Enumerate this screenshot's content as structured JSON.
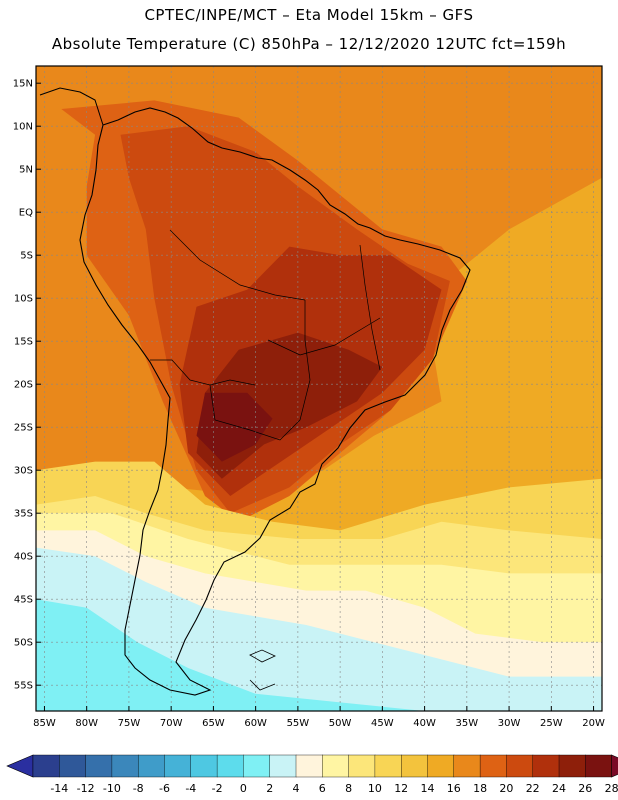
{
  "title_line1": "CPTEC/INPE/MCT –  Eta Model 15km – GFS",
  "title_line2": "Absolute Temperature (C) 850hPa – 12/12/2020 12UTC fct=159h",
  "map": {
    "lon_range": [
      -86,
      -19
    ],
    "lat_range": [
      -58,
      17
    ],
    "lat_ticks": [
      {
        "lat": 15,
        "label": "15N"
      },
      {
        "lat": 10,
        "label": "10N"
      },
      {
        "lat": 5,
        "label": "5N"
      },
      {
        "lat": 0,
        "label": "EQ"
      },
      {
        "lat": -5,
        "label": "5S"
      },
      {
        "lat": -10,
        "label": "10S"
      },
      {
        "lat": -15,
        "label": "15S"
      },
      {
        "lat": -20,
        "label": "20S"
      },
      {
        "lat": -25,
        "label": "25S"
      },
      {
        "lat": -30,
        "label": "30S"
      },
      {
        "lat": -35,
        "label": "35S"
      },
      {
        "lat": -40,
        "label": "40S"
      },
      {
        "lat": -45,
        "label": "45S"
      },
      {
        "lat": -50,
        "label": "50S"
      },
      {
        "lat": -55,
        "label": "55S"
      }
    ],
    "lon_ticks": [
      {
        "lon": -85,
        "label": "85W"
      },
      {
        "lon": -80,
        "label": "80W"
      },
      {
        "lon": -75,
        "label": "75W"
      },
      {
        "lon": -70,
        "label": "70W"
      },
      {
        "lon": -65,
        "label": "65W"
      },
      {
        "lon": -60,
        "label": "60W"
      },
      {
        "lon": -55,
        "label": "55W"
      },
      {
        "lon": -50,
        "label": "50W"
      },
      {
        "lon": -45,
        "label": "45W"
      },
      {
        "lon": -40,
        "label": "40W"
      },
      {
        "lon": -35,
        "label": "35W"
      },
      {
        "lon": -30,
        "label": "30W"
      },
      {
        "lon": -25,
        "label": "25W"
      },
      {
        "lon": -20,
        "label": "20W"
      }
    ],
    "temperature_zones": [
      {
        "band": "14-16",
        "ring": [
          [
            -86,
            17
          ],
          [
            -19,
            17
          ],
          [
            -19,
            -38
          ],
          [
            -86,
            -38
          ]
        ]
      },
      {
        "band": "16-18",
        "ring": [
          [
            -86,
            17
          ],
          [
            -19,
            17
          ],
          [
            -19,
            4
          ],
          [
            -30,
            -2
          ],
          [
            -40,
            -10
          ],
          [
            -38,
            -22
          ],
          [
            -46,
            -26
          ],
          [
            -52,
            -30
          ],
          [
            -60,
            -33
          ],
          [
            -70,
            -32
          ],
          [
            -86,
            -31
          ]
        ]
      },
      {
        "band": "18-20",
        "ring": [
          [
            -83,
            12
          ],
          [
            -72,
            13
          ],
          [
            -62,
            11
          ],
          [
            -55,
            6
          ],
          [
            -50,
            2
          ],
          [
            -45,
            -2
          ],
          [
            -38,
            -4
          ],
          [
            -35,
            -8
          ],
          [
            -39,
            -17
          ],
          [
            -44,
            -23
          ],
          [
            -50,
            -28
          ],
          [
            -56,
            -33
          ],
          [
            -62,
            -36
          ],
          [
            -66,
            -33
          ],
          [
            -71,
            -22
          ],
          [
            -75,
            -12
          ],
          [
            -80,
            -5
          ],
          [
            -80,
            3
          ],
          [
            -79,
            9
          ]
        ]
      },
      {
        "band": "20-22",
        "ring": [
          [
            -76,
            9
          ],
          [
            -68,
            10
          ],
          [
            -60,
            7
          ],
          [
            -55,
            3
          ],
          [
            -48,
            -2
          ],
          [
            -42,
            -6
          ],
          [
            -37,
            -8
          ],
          [
            -39,
            -17
          ],
          [
            -44,
            -23
          ],
          [
            -50,
            -27
          ],
          [
            -56,
            -32
          ],
          [
            -63,
            -35
          ],
          [
            -67,
            -30
          ],
          [
            -70,
            -20
          ],
          [
            -72,
            -10
          ],
          [
            -73,
            -2
          ],
          [
            -75,
            4
          ]
        ]
      },
      {
        "band": "22-24",
        "ring": [
          [
            -67,
            -11
          ],
          [
            -61,
            -9
          ],
          [
            -56,
            -4
          ],
          [
            -50,
            -5
          ],
          [
            -44,
            -5
          ],
          [
            -38,
            -9
          ],
          [
            -40,
            -16
          ],
          [
            -45,
            -21
          ],
          [
            -51,
            -25
          ],
          [
            -57,
            -29
          ],
          [
            -63,
            -33
          ],
          [
            -68,
            -28
          ],
          [
            -69,
            -20
          ]
        ]
      },
      {
        "band": "24-26",
        "ring": [
          [
            -62,
            -16
          ],
          [
            -55,
            -14
          ],
          [
            -49,
            -16
          ],
          [
            -45,
            -18
          ],
          [
            -48,
            -22
          ],
          [
            -54,
            -25
          ],
          [
            -59,
            -27
          ],
          [
            -64,
            -31
          ],
          [
            -67,
            -28
          ],
          [
            -66,
            -21
          ]
        ]
      },
      {
        "band": "26-28",
        "ring": [
          [
            -66,
            -21
          ],
          [
            -61,
            -21
          ],
          [
            -58,
            -24
          ],
          [
            -60,
            -27
          ],
          [
            -64,
            -29
          ],
          [
            -67,
            -26
          ]
        ]
      },
      {
        "band": "10-12",
        "ring": [
          [
            -86,
            -30
          ],
          [
            -79,
            -29
          ],
          [
            -72,
            -29
          ],
          [
            -66,
            -34
          ],
          [
            -58,
            -36
          ],
          [
            -50,
            -37
          ],
          [
            -40,
            -34
          ],
          [
            -30,
            -32
          ],
          [
            -19,
            -31
          ],
          [
            -19,
            -42
          ],
          [
            -86,
            -42
          ]
        ]
      },
      {
        "band": "8-10",
        "ring": [
          [
            -86,
            -34
          ],
          [
            -79,
            -33
          ],
          [
            -73,
            -35
          ],
          [
            -66,
            -37
          ],
          [
            -55,
            -38
          ],
          [
            -45,
            -38
          ],
          [
            -38,
            -36
          ],
          [
            -30,
            -37
          ],
          [
            -19,
            -38
          ],
          [
            -19,
            -50
          ],
          [
            -86,
            -50
          ]
        ]
      },
      {
        "band": "6-8",
        "ring": [
          [
            -86,
            -35
          ],
          [
            -77,
            -35
          ],
          [
            -68,
            -38
          ],
          [
            -56,
            -41
          ],
          [
            -46,
            -41
          ],
          [
            -38,
            -41
          ],
          [
            -30,
            -42
          ],
          [
            -19,
            -42
          ],
          [
            -19,
            -58
          ],
          [
            -86,
            -58
          ]
        ]
      },
      {
        "band": "4-6",
        "ring": [
          [
            -86,
            -37
          ],
          [
            -79,
            -37
          ],
          [
            -73,
            -40
          ],
          [
            -66,
            -42
          ],
          [
            -54,
            -44
          ],
          [
            -47,
            -44
          ],
          [
            -40,
            -46
          ],
          [
            -34,
            -49
          ],
          [
            -26,
            -50
          ],
          [
            -19,
            -50
          ],
          [
            -19,
            -58
          ],
          [
            -86,
            -58
          ]
        ]
      },
      {
        "band": "2-4",
        "ring": [
          [
            -86,
            -39
          ],
          [
            -79,
            -40
          ],
          [
            -73,
            -43
          ],
          [
            -66,
            -46
          ],
          [
            -54,
            -48
          ],
          [
            -46,
            -50
          ],
          [
            -38,
            -52
          ],
          [
            -30,
            -54
          ],
          [
            -19,
            -54
          ],
          [
            -19,
            -58
          ],
          [
            -86,
            -58
          ]
        ]
      },
      {
        "band": "0-2",
        "ring": [
          [
            -86,
            -45
          ],
          [
            -80,
            -46
          ],
          [
            -74,
            -50
          ],
          [
            -68,
            -53
          ],
          [
            -60,
            -56
          ],
          [
            -50,
            -57
          ],
          [
            -40,
            -58
          ],
          [
            -86,
            -58
          ]
        ]
      }
    ]
  },
  "colorbar": {
    "tick_labels": [
      "-14",
      "-12",
      "-10",
      "-8",
      "-6",
      "-4",
      "-2",
      "0",
      "2",
      "4",
      "6",
      "8",
      "10",
      "12",
      "14",
      "16",
      "18",
      "20",
      "22",
      "24",
      "26",
      "28"
    ],
    "colors": [
      "#2b3f8e",
      "#2f5899",
      "#3570ab",
      "#3b87bb",
      "#3f9cc9",
      "#45b2d7",
      "#4ec8e2",
      "#5ddcec",
      "#7ff0f4",
      "#c9f3f6",
      "#fff4dc",
      "#fff5a3",
      "#fce67a",
      "#f8d555",
      "#f3c33d",
      "#efaa24",
      "#e9881b",
      "#de6214",
      "#cc4a0f",
      "#b0300c",
      "#8e1f0a",
      "#7a1210"
    ],
    "under_color": "#2a2fa0",
    "over_color": "#7a0a26"
  }
}
